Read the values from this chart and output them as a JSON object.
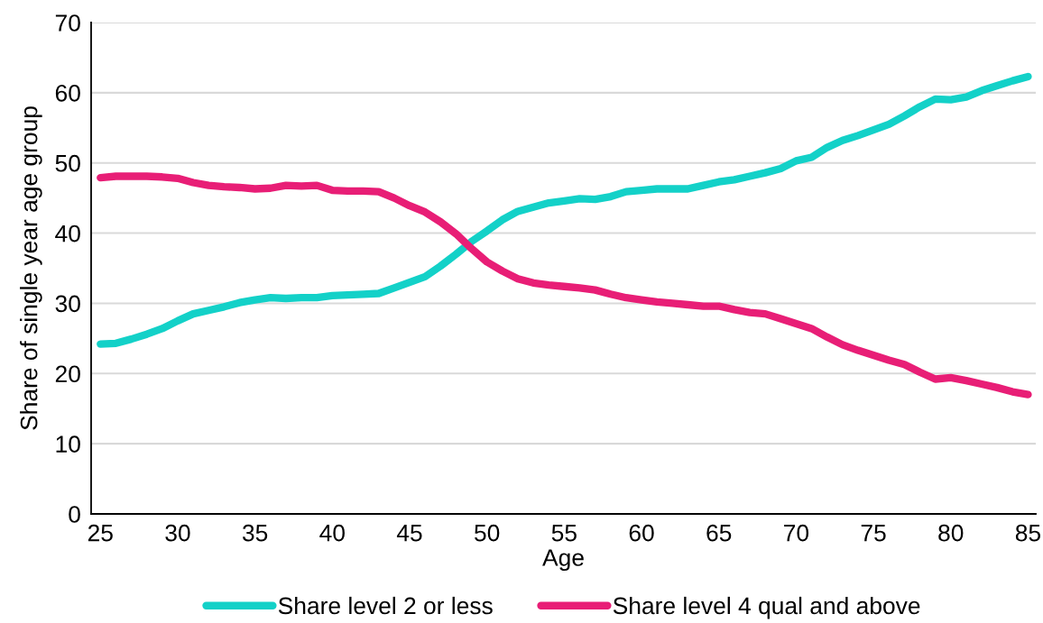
{
  "chart_data": {
    "type": "line",
    "xlabel": "Age",
    "ylabel": "Share of single year age group",
    "x": [
      25,
      26,
      27,
      28,
      29,
      30,
      31,
      32,
      33,
      34,
      35,
      36,
      37,
      38,
      39,
      40,
      41,
      42,
      43,
      44,
      45,
      46,
      47,
      48,
      49,
      50,
      51,
      52,
      53,
      54,
      55,
      56,
      57,
      58,
      59,
      60,
      61,
      62,
      63,
      64,
      65,
      66,
      67,
      68,
      69,
      70,
      71,
      72,
      73,
      74,
      75,
      76,
      77,
      78,
      79,
      80,
      81,
      82,
      83,
      84,
      85
    ],
    "series": [
      {
        "name": "Share level 2 or less",
        "color": "#13d1c8",
        "values": [
          24.2,
          24.3,
          24.9,
          25.6,
          26.4,
          27.5,
          28.5,
          29.0,
          29.5,
          30.1,
          30.5,
          30.8,
          30.7,
          30.8,
          30.8,
          31.1,
          31.2,
          31.3,
          31.4,
          32.2,
          33.0,
          33.8,
          35.3,
          37.0,
          38.8,
          40.3,
          41.9,
          43.1,
          43.7,
          44.3,
          44.6,
          44.9,
          44.8,
          45.2,
          45.9,
          46.1,
          46.3,
          46.3,
          46.3,
          46.8,
          47.3,
          47.6,
          48.1,
          48.6,
          49.2,
          50.3,
          50.8,
          52.2,
          53.2,
          53.9,
          54.7,
          55.5,
          56.7,
          58.0,
          59.1,
          59.0,
          59.4,
          60.3,
          61.0,
          61.7,
          62.3
        ]
      },
      {
        "name": "Share level 4 qual and above",
        "color": "#e81e76",
        "values": [
          47.9,
          48.1,
          48.1,
          48.1,
          48.0,
          47.8,
          47.2,
          46.8,
          46.6,
          46.5,
          46.3,
          46.4,
          46.8,
          46.7,
          46.8,
          46.1,
          46.0,
          46.0,
          45.9,
          45.0,
          43.9,
          43.0,
          41.6,
          39.9,
          37.8,
          35.9,
          34.6,
          33.5,
          32.9,
          32.6,
          32.4,
          32.2,
          31.9,
          31.3,
          30.8,
          30.5,
          30.2,
          30.0,
          29.8,
          29.6,
          29.6,
          29.1,
          28.7,
          28.5,
          27.8,
          27.1,
          26.4,
          25.2,
          24.1,
          23.3,
          22.6,
          21.9,
          21.3,
          20.2,
          19.2,
          19.4,
          19.0,
          18.5,
          18.0,
          17.4,
          17.0
        ]
      }
    ],
    "xlim": [
      24.4,
      85.5
    ],
    "xticks": [
      25,
      30,
      35,
      40,
      45,
      50,
      55,
      60,
      65,
      70,
      75,
      80,
      85
    ],
    "ylim": [
      0,
      70
    ],
    "yticks": [
      0,
      10,
      20,
      30,
      40,
      50,
      60,
      70
    ],
    "grid": "y",
    "legend": "bottom",
    "marker": "none",
    "line_style": "solid"
  }
}
